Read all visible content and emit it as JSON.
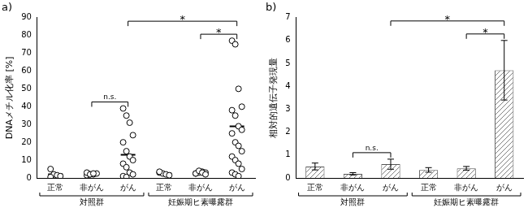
{
  "chart_data": [
    {
      "type": "scatter",
      "title": "a)",
      "y_label": "DNAメチル化率 [%]",
      "categories": [
        "正常",
        "非がん",
        "がん",
        "正常",
        "非がん",
        "がん"
      ],
      "groups": [
        {
          "name": "対照群",
          "count": 3
        },
        {
          "name": "妊娠期ヒ素曝露群",
          "count": 3
        }
      ],
      "points": [
        [
          5,
          2,
          1.5,
          1,
          0.5
        ],
        [
          1.5,
          2,
          2,
          2.5,
          3,
          2,
          2.5
        ],
        [
          39,
          35,
          31,
          24,
          20,
          15,
          12,
          10,
          8,
          6,
          3,
          2,
          1,
          0.5
        ],
        [
          3,
          2.5,
          2,
          1.5,
          3.5
        ],
        [
          2.5,
          3,
          3.5,
          3,
          2.5,
          4,
          3,
          2
        ],
        [
          77,
          75,
          50,
          40,
          38,
          35,
          29,
          27,
          25,
          20,
          18,
          15,
          12,
          10,
          8,
          5,
          3,
          2,
          1
        ]
      ],
      "means": [
        2,
        2,
        13,
        2.5,
        3,
        29
      ],
      "color": "#000000",
      "marker": "circle",
      "ylim": [
        0,
        90
      ],
      "yticks": [
        0,
        10,
        20,
        30,
        40,
        50,
        60,
        70,
        80,
        90
      ],
      "grid": false,
      "annotations": [
        {
          "from": 1,
          "to": 2,
          "label": "n.s."
        },
        {
          "from": 4,
          "to": 5,
          "label": "*"
        },
        {
          "from": 2,
          "to": 5,
          "label": "*"
        }
      ]
    },
    {
      "type": "bar",
      "title": "b)",
      "y_label": "相対的遺伝子発現量",
      "categories": [
        "正常",
        "非がん",
        "がん",
        "正常",
        "非がん",
        "がん"
      ],
      "groups": [
        {
          "name": "対照群",
          "count": 3
        },
        {
          "name": "妊娠期ヒ素曝露群",
          "count": 3
        }
      ],
      "values": [
        0.5,
        0.18,
        0.6,
        0.35,
        0.42,
        4.7
      ],
      "errors": [
        0.15,
        0.05,
        0.22,
        0.1,
        0.08,
        1.3
      ],
      "color": "#808080",
      "ylim": [
        0,
        7
      ],
      "yticks": [
        0,
        1,
        2,
        3,
        4,
        5,
        6,
        7
      ],
      "grid": false,
      "annotations": [
        {
          "from": 1,
          "to": 2,
          "label": "n.s."
        },
        {
          "from": 4,
          "to": 5,
          "label": "*"
        },
        {
          "from": 2,
          "to": 5,
          "label": "*"
        }
      ]
    }
  ]
}
